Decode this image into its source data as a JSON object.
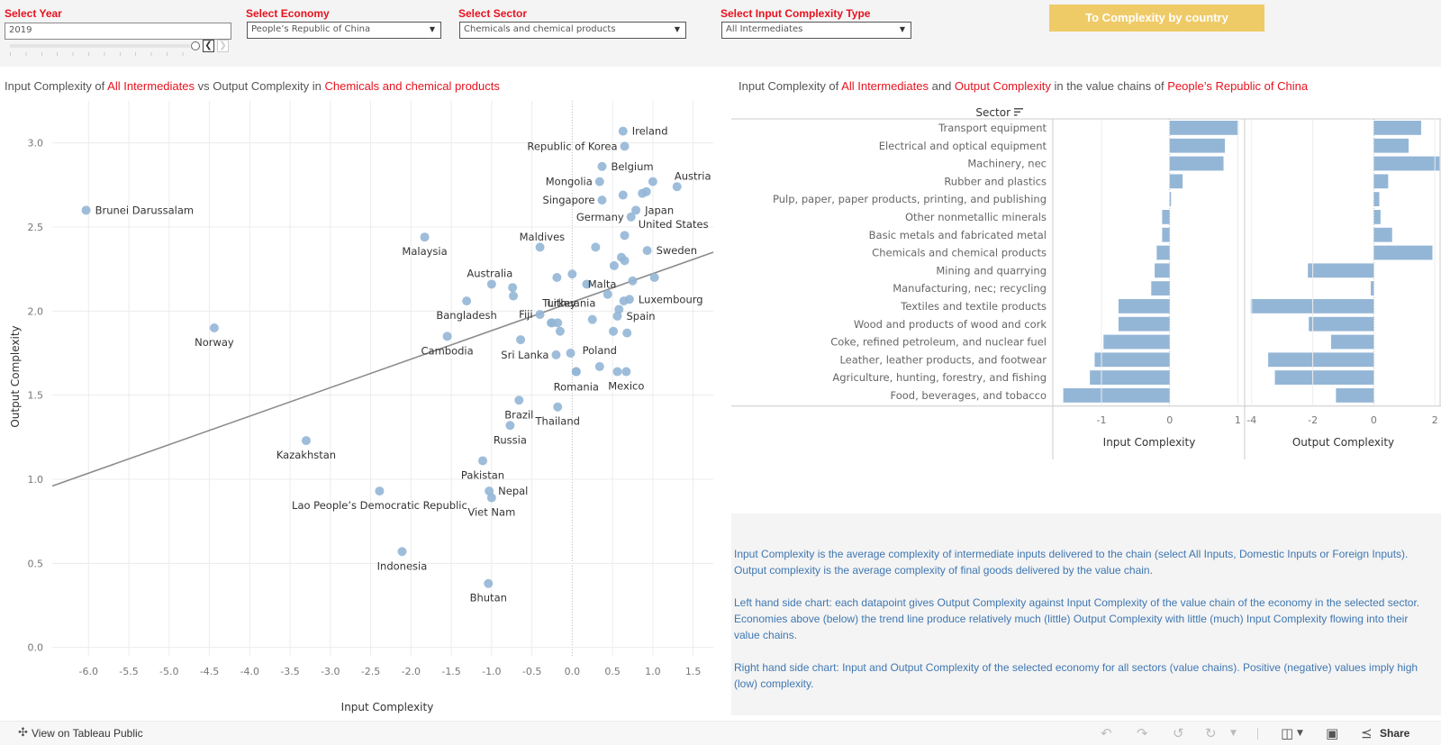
{
  "filters": {
    "year": {
      "label": "Select Year",
      "value": "2019"
    },
    "economy": {
      "label": "Select Economy",
      "value": "People’s Republic of China"
    },
    "sector": {
      "label": "Select Sector",
      "value": "Chemicals and chemical products"
    },
    "input_type": {
      "label": "Select Input Complexity Type",
      "value": "All Intermediates"
    }
  },
  "year_slider": {
    "prev_icon": "❮",
    "next_icon": "❯"
  },
  "cta_button": "To Complexity by country",
  "left_title": {
    "p1": "Input Complexity of ",
    "h1": "All Intermediates",
    "p2": " vs Output Complexity in ",
    "h2": "Chemicals and chemical products"
  },
  "right_title": {
    "p1": "Input Complexity of ",
    "h1": "All Intermediates",
    "p2": " and ",
    "h2": "Output Complexity",
    "p3": " in the value chains of ",
    "h3": "People’s Republic of China"
  },
  "colors": {
    "accent_red": "#e8121f",
    "mark_blue": "#94b6d6",
    "trend_gray": "#8c8c8c",
    "button_yellow": "#efcb68",
    "text_blue": "#3f77b1"
  },
  "chart_data": [
    {
      "type": "scatter",
      "title": "Input Complexity of All Intermediates vs Output Complexity in Chemicals and chemical products",
      "xlabel": "Input Complexity",
      "ylabel": "Output Complexity",
      "xlim": [
        -6.45,
        1.75
      ],
      "ylim": [
        -0.05,
        3.25
      ],
      "xticks": [
        -6.0,
        -5.5,
        -5.0,
        -4.5,
        -4.0,
        -3.5,
        -3.0,
        -2.5,
        -2.0,
        -1.5,
        -1.0,
        -0.5,
        0.0,
        0.5,
        1.0,
        1.5
      ],
      "yticks": [
        0.0,
        0.5,
        1.0,
        1.5,
        2.0,
        2.5,
        3.0
      ],
      "grid": true,
      "trend_line": {
        "x": [
          -6.45,
          1.75
        ],
        "y": [
          0.96,
          2.35
        ]
      },
      "points": [
        {
          "label": "Ireland",
          "x": 0.63,
          "y": 3.07
        },
        {
          "label": "Republic of Korea",
          "x": 0.65,
          "y": 2.98
        },
        {
          "label": "Belgium",
          "x": 0.37,
          "y": 2.86
        },
        {
          "label": "Austria",
          "x": 1.0,
          "y": 2.77
        },
        {
          "label": "Mongolia",
          "x": 0.34,
          "y": 2.77
        },
        {
          "label": "",
          "x": 1.3,
          "y": 2.74
        },
        {
          "label": "",
          "x": 0.92,
          "y": 2.71
        },
        {
          "label": "",
          "x": 0.87,
          "y": 2.7
        },
        {
          "label": "Singapore",
          "x": 0.37,
          "y": 2.66
        },
        {
          "label": "",
          "x": 0.63,
          "y": 2.69
        },
        {
          "label": "Japan",
          "x": 0.79,
          "y": 2.6
        },
        {
          "label": "Germany",
          "x": 0.73,
          "y": 2.56
        },
        {
          "label": "United States",
          "x": "",
          "y": ""
        },
        {
          "label": "",
          "x": 0.65,
          "y": 2.45
        },
        {
          "label": "Malaysia",
          "x": -1.83,
          "y": 2.44
        },
        {
          "label": "",
          "x": -0.4,
          "y": 2.38
        },
        {
          "label": "",
          "x": 0.29,
          "y": 2.38
        },
        {
          "label": "Sweden",
          "x": 0.93,
          "y": 2.36
        },
        {
          "label": "",
          "x": 0.61,
          "y": 2.32
        },
        {
          "label": "",
          "x": 0.65,
          "y": 2.3
        },
        {
          "label": "Maldives",
          "x": 0.52,
          "y": 2.27
        },
        {
          "label": "",
          "x": 0.0,
          "y": 2.22
        },
        {
          "label": "",
          "x": -0.19,
          "y": 2.2
        },
        {
          "label": "",
          "x": 1.02,
          "y": 2.2
        },
        {
          "label": "Malta",
          "x": 0.75,
          "y": 2.18
        },
        {
          "label": "",
          "x": 0.18,
          "y": 2.16
        },
        {
          "label": "Australia",
          "x": -1.0,
          "y": 2.16
        },
        {
          "label": "",
          "x": -0.74,
          "y": 2.14
        },
        {
          "label": "Lithuania",
          "x": 0.44,
          "y": 2.1
        },
        {
          "label": "",
          "x": -0.73,
          "y": 2.09
        },
        {
          "label": "Luxembourg",
          "x": 0.71,
          "y": 2.07
        },
        {
          "label": "",
          "x": 0.64,
          "y": 2.06
        },
        {
          "label": "Bangladesh",
          "x": -1.31,
          "y": 2.06
        },
        {
          "label": "",
          "x": 0.58,
          "y": 2.01
        },
        {
          "label": "Fiji",
          "x": -0.4,
          "y": 1.98
        },
        {
          "label": "Spain",
          "x": 0.56,
          "y": 1.97
        },
        {
          "label": "Turkey",
          "x": 0.25,
          "y": 1.95
        },
        {
          "label": "",
          "x": -0.26,
          "y": 1.93
        },
        {
          "label": "",
          "x": -0.18,
          "y": 1.93
        },
        {
          "label": "",
          "x": -0.25,
          "y": 1.93
        },
        {
          "label": "Norway",
          "x": -4.44,
          "y": 1.9
        },
        {
          "label": "",
          "x": -0.15,
          "y": 1.88
        },
        {
          "label": "",
          "x": 0.51,
          "y": 1.88
        },
        {
          "label": "",
          "x": 0.68,
          "y": 1.87
        },
        {
          "label": "Cambodia",
          "x": -1.55,
          "y": 1.85
        },
        {
          "label": "",
          "x": -0.64,
          "y": 1.83
        },
        {
          "label": "Sri Lanka",
          "x": -0.2,
          "y": 1.74
        },
        {
          "label": "",
          "x": -0.02,
          "y": 1.75
        },
        {
          "label": "Poland",
          "x": 0.34,
          "y": 1.67
        },
        {
          "label": "",
          "x": 0.05,
          "y": 1.64
        },
        {
          "label": "",
          "x": 0.56,
          "y": 1.64
        },
        {
          "label": "Mexico",
          "x": 0.67,
          "y": 1.64
        },
        {
          "label": "Romania",
          "x": 0.05,
          "y": 1.64
        },
        {
          "label": "Brazil",
          "x": -0.66,
          "y": 1.47
        },
        {
          "label": "Thailand",
          "x": -0.18,
          "y": 1.43
        },
        {
          "label": "Russia",
          "x": -0.77,
          "y": 1.32
        },
        {
          "label": "Kazakhstan",
          "x": -3.3,
          "y": 1.23
        },
        {
          "label": "Pakistan",
          "x": -1.11,
          "y": 1.11
        },
        {
          "label": "Nepal",
          "x": -1.03,
          "y": 0.93
        },
        {
          "label": "Lao People’s Democratic Republic",
          "x": -2.39,
          "y": 0.93
        },
        {
          "label": "Viet Nam",
          "x": -1.0,
          "y": 0.89
        },
        {
          "label": "Brunei Darussalam",
          "x": -6.03,
          "y": 2.6
        },
        {
          "label": "Indonesia",
          "x": -2.11,
          "y": 0.57
        },
        {
          "label": "Bhutan",
          "x": -1.04,
          "y": 0.38
        }
      ]
    },
    {
      "type": "bar",
      "title": "Input Complexity of All Intermediates and Output Complexity in the value chains of People’s Republic of China",
      "row_header": "Sector",
      "categories": [
        "Transport equipment",
        "Electrical and optical equipment",
        "Machinery, nec",
        "Rubber and plastics",
        "Pulp, paper, paper products, printing, and publishing",
        "Other nonmetallic minerals",
        "Basic metals and fabricated metal",
        "Chemicals and chemical products",
        "Mining and quarrying",
        "Manufacturing, nec; recycling",
        "Textiles and textile products",
        "Wood and products of wood and cork",
        "Coke, refined petroleum, and nuclear fuel",
        "Leather, leather products, and footwear",
        "Agriculture, hunting, forestry, and fishing",
        "Food, beverages, and tobacco"
      ],
      "series": [
        {
          "name": "Input Complexity",
          "xlim": [
            -1.7,
            1.1
          ],
          "xticks": [
            -1,
            0,
            1
          ],
          "values": [
            1.01,
            0.81,
            0.79,
            0.19,
            0.02,
            -0.11,
            -0.11,
            -0.19,
            -0.22,
            -0.27,
            -0.75,
            -0.75,
            -0.97,
            -1.1,
            -1.17,
            -1.56
          ]
        },
        {
          "name": "Output Complexity",
          "xlim": [
            -4.2,
            2.2
          ],
          "xticks": [
            -4,
            -2,
            0,
            2
          ],
          "values": [
            1.55,
            1.14,
            2.15,
            0.47,
            0.18,
            0.22,
            0.6,
            1.92,
            -2.16,
            -0.1,
            -4.03,
            -2.13,
            -1.4,
            -3.46,
            -3.24,
            -1.24
          ]
        }
      ]
    }
  ],
  "description": {
    "p1": "Input Complexity is the average complexity of intermediate inputs delivered to the chain (select All Inputs, Domestic Inputs or Foreign Inputs). Output complexity is the average complexity of final goods delivered by the value chain.",
    "p2": "Left hand side chart: each datapoint gives Output Complexity against Input Complexity of the value chain of the economy in the selected sector. Economies above (below) the trend line produce relatively much (little) Output Complexity with little (much) Input Complexity flowing into their value chains.",
    "p3": "Right hand side chart: Input and Output Complexity of the selected economy for all sectors (value chains). Positive (negative) values imply high (low) complexity."
  },
  "footer": {
    "view_link": "View on Tableau Public",
    "share_label": "Share"
  }
}
